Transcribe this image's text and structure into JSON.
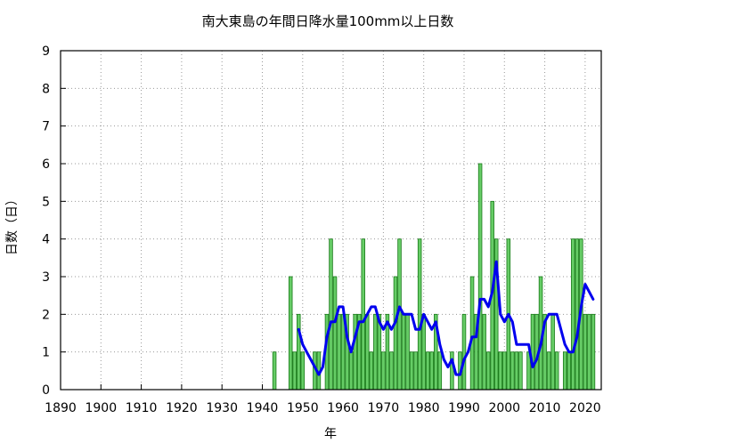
{
  "chart_data": {
    "type": "bar",
    "title": "南大東島の年間日降水量100mm以上日数",
    "xlabel": "年",
    "ylabel": "日数（日）",
    "xlim": [
      1890,
      2024
    ],
    "ylim": [
      0,
      9
    ],
    "x_ticks": [
      1890,
      1900,
      1910,
      1920,
      1930,
      1940,
      1950,
      1960,
      1970,
      1980,
      1990,
      2000,
      2010,
      2020
    ],
    "y_ticks": [
      0,
      1,
      2,
      3,
      4,
      5,
      6,
      7,
      8,
      9
    ],
    "grid": true,
    "colors": {
      "bar_fill": "#66cc66",
      "bar_stroke": "#1a7a1a",
      "line": "#0000ee"
    },
    "series": [
      {
        "kind": "bar",
        "x": [
          1943,
          1947,
          1948,
          1949,
          1950,
          1951,
          1952,
          1953,
          1954,
          1955,
          1956,
          1957,
          1958,
          1959,
          1960,
          1961,
          1962,
          1963,
          1964,
          1965,
          1966,
          1967,
          1968,
          1969,
          1970,
          1971,
          1972,
          1973,
          1974,
          1975,
          1976,
          1977,
          1978,
          1979,
          1980,
          1981,
          1982,
          1983,
          1984,
          1985,
          1986,
          1987,
          1988,
          1989,
          1990,
          1991,
          1992,
          1993,
          1994,
          1995,
          1996,
          1997,
          1998,
          1999,
          2000,
          2001,
          2002,
          2003,
          2004,
          2005,
          2006,
          2007,
          2008,
          2009,
          2010,
          2011,
          2012,
          2013,
          2014,
          2015,
          2016,
          2017,
          2018,
          2019,
          2020,
          2021,
          2022
        ],
        "values": [
          1,
          3,
          1,
          2,
          1,
          0,
          0,
          1,
          1,
          0,
          2,
          4,
          3,
          2,
          2,
          2,
          1,
          2,
          2,
          4,
          2,
          1,
          2,
          2,
          1,
          2,
          1,
          3,
          4,
          2,
          2,
          1,
          1,
          4,
          2,
          1,
          1,
          2,
          1,
          0,
          0,
          1,
          0,
          1,
          2,
          0,
          3,
          2,
          6,
          2,
          1,
          5,
          4,
          1,
          1,
          4,
          1,
          1,
          1,
          0,
          1,
          2,
          2,
          3,
          2,
          1,
          2,
          1,
          0,
          1,
          1,
          4,
          4,
          4,
          2,
          2,
          2
        ]
      },
      {
        "kind": "line",
        "x": [
          1949,
          1950,
          1951,
          1952,
          1953,
          1954,
          1955,
          1956,
          1957,
          1958,
          1959,
          1960,
          1961,
          1962,
          1963,
          1964,
          1965,
          1966,
          1967,
          1968,
          1969,
          1970,
          1971,
          1972,
          1973,
          1974,
          1975,
          1976,
          1977,
          1978,
          1979,
          1980,
          1981,
          1982,
          1983,
          1984,
          1985,
          1986,
          1987,
          1988,
          1989,
          1990,
          1991,
          1992,
          1993,
          1994,
          1995,
          1996,
          1997,
          1998,
          1999,
          2000,
          2001,
          2002,
          2003,
          2004,
          2005,
          2006,
          2007,
          2008,
          2009,
          2010,
          2011,
          2012,
          2013,
          2014,
          2015,
          2016,
          2017,
          2018,
          2019,
          2020,
          2021,
          2022
        ],
        "values": [
          1.6,
          1.2,
          1.0,
          0.8,
          0.6,
          0.4,
          0.6,
          1.4,
          1.8,
          1.8,
          2.2,
          2.2,
          1.4,
          1.0,
          1.4,
          1.8,
          1.8,
          2.0,
          2.2,
          2.2,
          1.8,
          1.6,
          1.8,
          1.6,
          1.8,
          2.2,
          2.0,
          2.0,
          2.0,
          1.6,
          1.6,
          2.0,
          1.8,
          1.6,
          1.8,
          1.2,
          0.8,
          0.6,
          0.8,
          0.4,
          0.4,
          0.8,
          1.0,
          1.4,
          1.4,
          2.4,
          2.4,
          2.2,
          2.6,
          3.4,
          2.0,
          1.8,
          2.0,
          1.8,
          1.2,
          1.2,
          1.2,
          1.2,
          0.6,
          0.8,
          1.2,
          1.8,
          2.0,
          2.0,
          2.0,
          1.6,
          1.2,
          1.0,
          1.0,
          1.4,
          2.2,
          2.8,
          2.6,
          2.4
        ]
      }
    ]
  }
}
